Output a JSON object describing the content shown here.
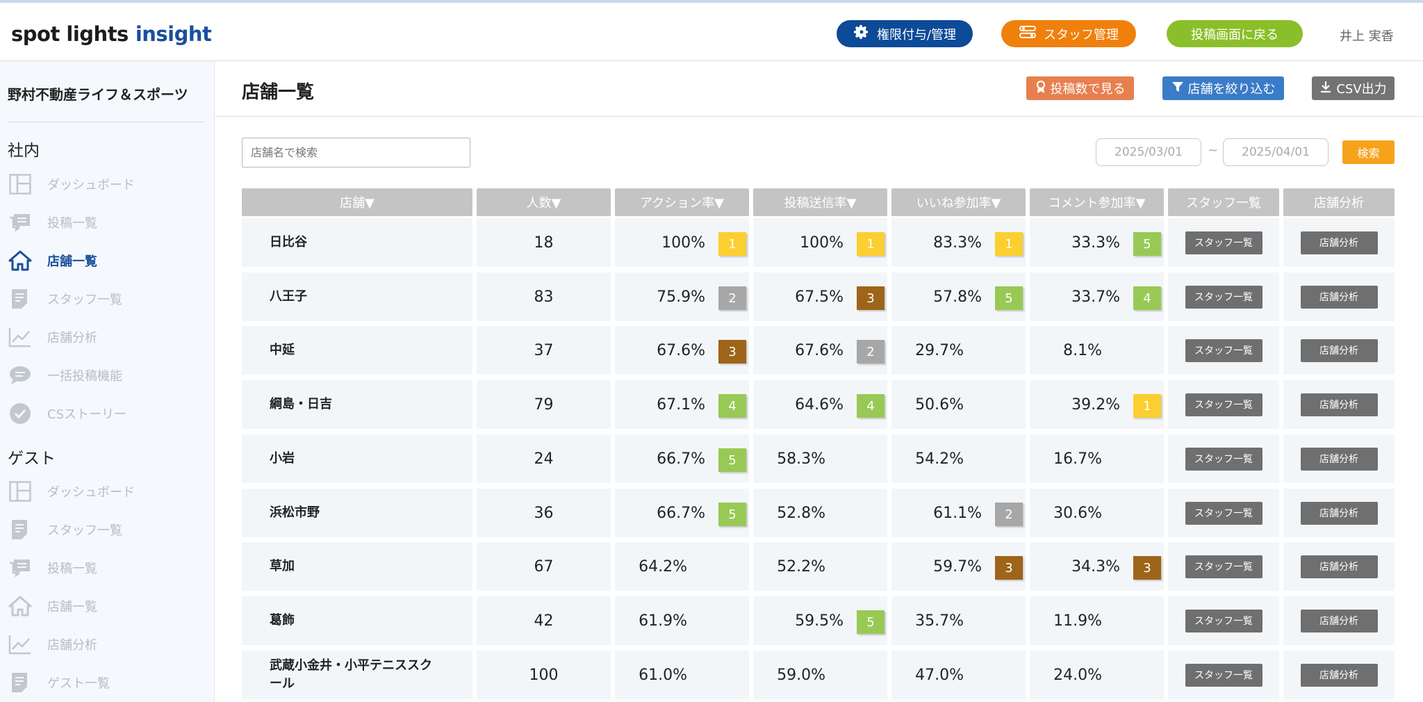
{
  "header": {
    "logo_spot": "spot lights",
    "logo_insight": "insight",
    "perm_button": "権限付与/管理",
    "staff_button": "スタッフ管理",
    "back_button": "投稿画面に戻る",
    "user_name": "井上 実香"
  },
  "sidebar": {
    "org_name": "野村不動産ライフ＆スポーツ",
    "section_internal": "社内",
    "internal_items": [
      {
        "label": "ダッシュボード",
        "icon": "dashboard-icon"
      },
      {
        "label": "投稿一覧",
        "icon": "posts-icon"
      },
      {
        "label": "店舗一覧",
        "icon": "home-icon",
        "active": true
      },
      {
        "label": "スタッフ一覧",
        "icon": "document-icon"
      },
      {
        "label": "店舗分析",
        "icon": "chart-icon"
      },
      {
        "label": "一括投稿機能",
        "icon": "chat-icon"
      },
      {
        "label": "CSストーリー",
        "icon": "check-circle-icon"
      }
    ],
    "section_guest": "ゲスト",
    "guest_items": [
      {
        "label": "ダッシュボード",
        "icon": "dashboard-icon"
      },
      {
        "label": "スタッフ一覧",
        "icon": "document-icon"
      },
      {
        "label": "投稿一覧",
        "icon": "posts-icon"
      },
      {
        "label": "店舗一覧",
        "icon": "home-icon"
      },
      {
        "label": "店舗分析",
        "icon": "chart-icon"
      },
      {
        "label": "ゲスト一覧",
        "icon": "document-icon"
      }
    ]
  },
  "main": {
    "title": "店舗一覧",
    "posts_button": "投稿数で見る",
    "filter_button": "店舗を絞り込む",
    "csv_button": "CSV出力",
    "search_placeholder": "店舗名で検索",
    "date_from": "2025/03/01",
    "date_sep": "~",
    "date_to": "2025/04/01",
    "search_button": "検索"
  },
  "table": {
    "columns": [
      "店舗▼",
      "人数▼",
      "アクション率▼",
      "投稿送信率▼",
      "いいね参加率▼",
      "コメント参加率▼",
      "スタッフ一覧",
      "店舗分析"
    ],
    "staff_button_label": "スタッフ一覧",
    "analysis_button_label": "店舗分析",
    "rows": [
      {
        "store": "日比谷",
        "count": "18",
        "action": "100%",
        "action_rank": "1",
        "post": "100%",
        "post_rank": "1",
        "like": "83.3%",
        "like_rank": "1",
        "comment": "33.3%",
        "comment_rank": "5"
      },
      {
        "store": "八王子",
        "count": "83",
        "action": "75.9%",
        "action_rank": "2",
        "post": "67.5%",
        "post_rank": "3",
        "like": "57.8%",
        "like_rank": "5",
        "comment": "33.7%",
        "comment_rank": "4"
      },
      {
        "store": "中延",
        "count": "37",
        "action": "67.6%",
        "action_rank": "3",
        "post": "67.6%",
        "post_rank": "2",
        "like": "29.7%",
        "like_rank": "",
        "comment": "8.1%",
        "comment_rank": ""
      },
      {
        "store": "綱島・日吉",
        "count": "79",
        "action": "67.1%",
        "action_rank": "4",
        "post": "64.6%",
        "post_rank": "4",
        "like": "50.6%",
        "like_rank": "",
        "comment": "39.2%",
        "comment_rank": "1"
      },
      {
        "store": "小岩",
        "count": "24",
        "action": "66.7%",
        "action_rank": "5",
        "post": "58.3%",
        "post_rank": "",
        "like": "54.2%",
        "like_rank": "",
        "comment": "16.7%",
        "comment_rank": ""
      },
      {
        "store": "浜松市野",
        "count": "36",
        "action": "66.7%",
        "action_rank": "5",
        "post": "52.8%",
        "post_rank": "",
        "like": "61.1%",
        "like_rank": "2",
        "comment": "30.6%",
        "comment_rank": ""
      },
      {
        "store": "草加",
        "count": "67",
        "action": "64.2%",
        "action_rank": "",
        "post": "52.2%",
        "post_rank": "",
        "like": "59.7%",
        "like_rank": "3",
        "comment": "34.3%",
        "comment_rank": "3"
      },
      {
        "store": "葛飾",
        "count": "42",
        "action": "61.9%",
        "action_rank": "",
        "post": "59.5%",
        "post_rank": "5",
        "like": "35.7%",
        "like_rank": "",
        "comment": "11.9%",
        "comment_rank": ""
      },
      {
        "store": "武蔵小金井・小平テニススクール",
        "count": "100",
        "action": "61.0%",
        "action_rank": "",
        "post": "59.0%",
        "post_rank": "",
        "like": "47.0%",
        "like_rank": "",
        "comment": "24.0%",
        "comment_rank": ""
      }
    ]
  },
  "colors": {
    "rank_1": "#fbcf2f",
    "rank_2": "#a7a7a7",
    "rank_3": "#9e6419",
    "rank_4_5": "#99c955",
    "brand_blue": "#1a4f9c"
  }
}
